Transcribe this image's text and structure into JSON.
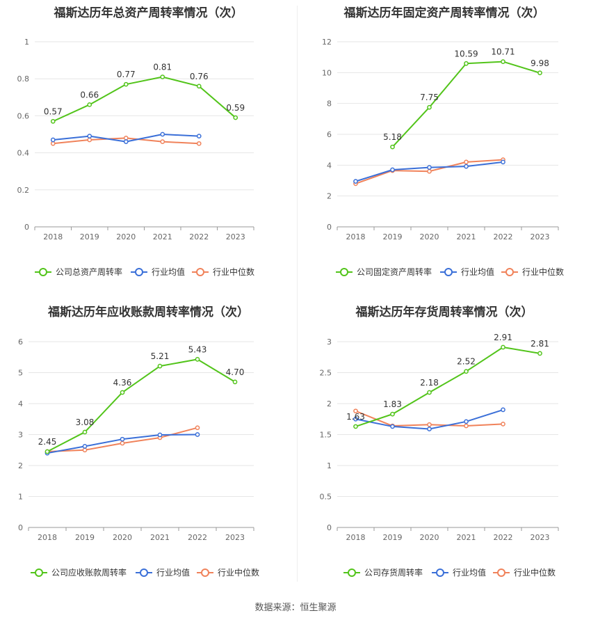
{
  "source_text": "数据来源：恒生聚源",
  "colors": {
    "company": "#52c41a",
    "industry_avg": "#3a6fd8",
    "industry_median": "#f0825a"
  },
  "chart_data": [
    {
      "type": "line",
      "title": "福斯达历年总资产周转率情况（次）",
      "x": [
        "2018",
        "2019",
        "2020",
        "2021",
        "2022",
        "2023"
      ],
      "yticks": [
        "0",
        "0.2",
        "0.4",
        "0.6",
        "0.8",
        "1"
      ],
      "ylim": [
        0,
        1
      ],
      "grid": true,
      "legend_position": "bottom",
      "series": [
        {
          "name": "公司总资产周转率",
          "values": [
            0.57,
            0.66,
            0.77,
            0.81,
            0.76,
            0.59
          ],
          "labels": [
            "0.57",
            "0.66",
            "0.77",
            "0.81",
            "0.76",
            "0.59"
          ]
        },
        {
          "name": "行业均值",
          "values": [
            0.47,
            0.49,
            0.46,
            0.5,
            0.49,
            null
          ]
        },
        {
          "name": "行业中位数",
          "values": [
            0.45,
            0.47,
            0.48,
            0.46,
            0.45,
            null
          ]
        }
      ]
    },
    {
      "type": "line",
      "title": "福斯达历年固定资产周转率情况（次）",
      "x": [
        "2018",
        "2019",
        "2020",
        "2021",
        "2022",
        "2023"
      ],
      "yticks": [
        "0",
        "2",
        "4",
        "6",
        "8",
        "10",
        "12"
      ],
      "ylim": [
        0,
        12
      ],
      "grid": true,
      "legend_position": "bottom",
      "series": [
        {
          "name": "公司固定资产周转率",
          "values": [
            null,
            5.18,
            7.75,
            10.59,
            10.71,
            9.98
          ],
          "labels": [
            "",
            "5.18",
            "7.75",
            "10.59",
            "10.71",
            "9.98"
          ]
        },
        {
          "name": "行业均值",
          "values": [
            2.95,
            3.7,
            3.85,
            3.92,
            4.2,
            null
          ]
        },
        {
          "name": "行业中位数",
          "values": [
            2.8,
            3.65,
            3.6,
            4.2,
            4.35,
            null
          ]
        }
      ]
    },
    {
      "type": "line",
      "title": "福斯达历年应收账款周转率情况（次）",
      "x": [
        "2018",
        "2019",
        "2020",
        "2021",
        "2022",
        "2023"
      ],
      "yticks": [
        "0",
        "1",
        "2",
        "3",
        "4",
        "5",
        "6"
      ],
      "ylim": [
        0,
        6
      ],
      "grid": true,
      "legend_position": "bottom",
      "series": [
        {
          "name": "公司应收账款周转率",
          "values": [
            2.45,
            3.08,
            4.36,
            5.21,
            5.43,
            4.7
          ],
          "labels": [
            "2.45",
            "3.08",
            "4.36",
            "5.21",
            "5.43",
            "4.70"
          ]
        },
        {
          "name": "行业均值",
          "values": [
            2.4,
            2.62,
            2.85,
            2.99,
            3.0,
            null
          ]
        },
        {
          "name": "行业中位数",
          "values": [
            2.45,
            2.5,
            2.72,
            2.9,
            3.22,
            null
          ]
        }
      ]
    },
    {
      "type": "line",
      "title": "福斯达历年存货周转率情况（次）",
      "x": [
        "2018",
        "2019",
        "2020",
        "2021",
        "2022",
        "2023"
      ],
      "yticks": [
        "0",
        "0.5",
        "1",
        "1.5",
        "2",
        "2.5",
        "3"
      ],
      "ylim": [
        0,
        3
      ],
      "grid": true,
      "legend_position": "bottom",
      "series": [
        {
          "name": "公司存货周转率",
          "values": [
            1.63,
            1.83,
            2.18,
            2.52,
            2.91,
            2.81
          ],
          "labels": [
            "1.63",
            "1.83",
            "2.18",
            "2.52",
            "2.91",
            "2.81"
          ]
        },
        {
          "name": "行业均值",
          "values": [
            1.75,
            1.63,
            1.59,
            1.71,
            1.9,
            null
          ]
        },
        {
          "name": "行业中位数",
          "values": [
            1.88,
            1.64,
            1.66,
            1.64,
            1.67,
            null
          ]
        }
      ]
    }
  ]
}
